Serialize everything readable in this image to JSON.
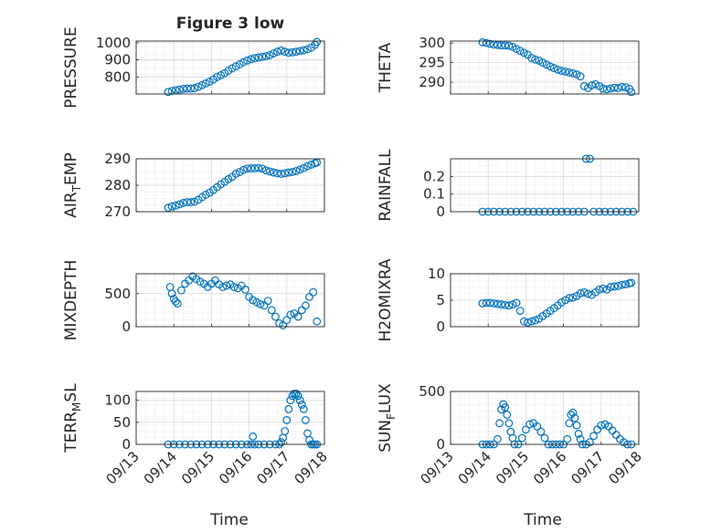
{
  "figure": {
    "title": "Figure 3 low",
    "x_axis_label": "Time",
    "x_tick_labels": [
      "09/13",
      "09/14",
      "09/15",
      "09/16",
      "09/17",
      "09/18"
    ],
    "marker": "circle",
    "marker_color": "#0072bd",
    "grid": "major and minor, dotted"
  },
  "chart_data": [
    {
      "type": "scatter",
      "ylabel": "PRESSURE",
      "ylim": [
        700,
        1010
      ],
      "y_ticks": [
        800,
        900,
        1000
      ],
      "show_x_tick_labels": false,
      "series": [
        {
          "x": [
            0.85,
            0.95,
            1.05,
            1.15,
            1.25,
            1.35,
            1.45,
            1.55,
            1.65,
            1.75,
            1.85,
            1.95,
            2.05,
            2.15,
            2.25,
            2.35,
            2.45,
            2.55,
            2.65,
            2.75,
            2.85,
            2.95,
            3.05,
            3.15,
            3.25,
            3.35,
            3.45,
            3.55,
            3.65,
            3.75,
            3.85,
            3.95,
            4.05,
            4.15,
            4.25,
            4.35,
            4.45,
            4.55,
            4.65,
            4.75,
            4.8
          ],
          "y": [
            712,
            718,
            722,
            726,
            730,
            732,
            732,
            734,
            742,
            752,
            762,
            772,
            785,
            800,
            810,
            822,
            836,
            850,
            862,
            874,
            886,
            896,
            904,
            910,
            914,
            918,
            922,
            928,
            938,
            948,
            955,
            948,
            942,
            944,
            948,
            952,
            956,
            962,
            972,
            988,
            1005
          ]
        }
      ]
    },
    {
      "type": "scatter",
      "ylabel": "THETA",
      "ylim": [
        287,
        300.5
      ],
      "y_ticks": [
        290,
        295,
        300
      ],
      "show_x_tick_labels": false,
      "series": [
        {
          "x": [
            0.85,
            0.95,
            1.05,
            1.15,
            1.25,
            1.35,
            1.45,
            1.55,
            1.65,
            1.75,
            1.85,
            1.95,
            2.05,
            2.15,
            2.25,
            2.35,
            2.45,
            2.55,
            2.65,
            2.75,
            2.85,
            2.95,
            3.05,
            3.15,
            3.25,
            3.35,
            3.45,
            3.55,
            3.65,
            3.75,
            3.85,
            3.95,
            4.05,
            4.15,
            4.25,
            4.35,
            4.45,
            4.55,
            4.65,
            4.75,
            4.8
          ],
          "y": [
            300.2,
            300.0,
            299.8,
            299.6,
            299.5,
            299.4,
            299.4,
            299.3,
            299.0,
            298.5,
            298.0,
            297.5,
            297.0,
            296.2,
            295.8,
            295.5,
            295.0,
            294.5,
            294.0,
            293.6,
            293.2,
            292.9,
            292.7,
            292.5,
            292.3,
            292.0,
            291.5,
            289.0,
            288.5,
            289.2,
            289.5,
            289.0,
            288.4,
            288.2,
            288.4,
            288.6,
            288.5,
            288.8,
            288.7,
            288.3,
            287.5
          ]
        }
      ]
    },
    {
      "type": "scatter",
      "ylabel": "AIR",
      "ylabel_sub": "T",
      "ylabel_rest": "EMP",
      "ylim": [
        270,
        290
      ],
      "y_ticks": [
        270,
        280,
        290
      ],
      "show_x_tick_labels": false,
      "series": [
        {
          "x": [
            0.85,
            0.95,
            1.05,
            1.15,
            1.25,
            1.35,
            1.45,
            1.55,
            1.65,
            1.75,
            1.85,
            1.95,
            2.05,
            2.15,
            2.25,
            2.35,
            2.45,
            2.55,
            2.65,
            2.75,
            2.85,
            2.95,
            3.05,
            3.15,
            3.25,
            3.35,
            3.45,
            3.55,
            3.65,
            3.75,
            3.85,
            3.95,
            4.05,
            4.15,
            4.25,
            4.35,
            4.45,
            4.55,
            4.65,
            4.75,
            4.8
          ],
          "y": [
            271.5,
            272.0,
            272.3,
            272.8,
            273.3,
            273.6,
            273.6,
            273.8,
            274.5,
            275.5,
            276.4,
            277.2,
            278.2,
            279.3,
            280.4,
            281.3,
            282.3,
            283.2,
            284.3,
            285.0,
            285.8,
            286.3,
            286.4,
            286.4,
            286.5,
            286.3,
            285.6,
            285.2,
            284.8,
            284.5,
            284.3,
            284.5,
            284.8,
            285.0,
            285.4,
            285.9,
            286.5,
            287.2,
            287.8,
            288.3,
            288.6
          ]
        }
      ]
    },
    {
      "type": "scatter",
      "ylabel": "RAINFALL",
      "ylim": [
        0,
        0.3
      ],
      "y_ticks": [
        0,
        0.1,
        0.2
      ],
      "show_x_tick_labels": false,
      "series": [
        {
          "x": [
            0.85,
            1.0,
            1.15,
            1.3,
            1.45,
            1.6,
            1.75,
            1.9,
            2.05,
            2.2,
            2.35,
            2.5,
            2.65,
            2.8,
            2.95,
            3.1,
            3.25,
            3.4,
            3.55,
            3.6,
            3.7,
            3.8,
            3.95,
            4.1,
            4.25,
            4.4,
            4.55,
            4.7,
            4.85
          ],
          "y": [
            0,
            0,
            0,
            0,
            0,
            0,
            0,
            0,
            0,
            0,
            0,
            0,
            0,
            0,
            0,
            0,
            0,
            0,
            0,
            0.3,
            0.3,
            0,
            0,
            0,
            0,
            0,
            0,
            0,
            0
          ]
        }
      ]
    },
    {
      "type": "scatter",
      "ylabel": "MIXDEPTH",
      "ylim": [
        0,
        800
      ],
      "y_ticks": [
        0,
        500
      ],
      "show_x_tick_labels": false,
      "series": [
        {
          "x": [
            0.9,
            0.95,
            1.0,
            1.05,
            1.1,
            1.2,
            1.3,
            1.4,
            1.5,
            1.6,
            1.7,
            1.8,
            1.9,
            2.0,
            2.1,
            2.2,
            2.3,
            2.4,
            2.5,
            2.6,
            2.7,
            2.8,
            2.9,
            3.0,
            3.1,
            3.2,
            3.3,
            3.4,
            3.5,
            3.6,
            3.7,
            3.8,
            3.9,
            4.0,
            4.1,
            4.2,
            4.3,
            4.4,
            4.5,
            4.6,
            4.7,
            4.8
          ],
          "y": [
            600,
            500,
            420,
            380,
            350,
            550,
            650,
            700,
            760,
            720,
            680,
            650,
            600,
            650,
            700,
            640,
            600,
            620,
            640,
            600,
            580,
            620,
            560,
            450,
            400,
            370,
            340,
            320,
            390,
            250,
            150,
            50,
            20,
            100,
            180,
            200,
            150,
            250,
            320,
            450,
            520,
            80
          ]
        }
      ]
    },
    {
      "type": "scatter",
      "ylabel": "H2OMIXRA",
      "ylim": [
        0,
        10
      ],
      "y_ticks": [
        0,
        5,
        10
      ],
      "show_x_tick_labels": false,
      "series": [
        {
          "x": [
            0.85,
            0.95,
            1.05,
            1.15,
            1.25,
            1.35,
            1.45,
            1.55,
            1.65,
            1.75,
            1.85,
            1.95,
            2.05,
            2.15,
            2.25,
            2.35,
            2.45,
            2.55,
            2.65,
            2.75,
            2.85,
            2.95,
            3.05,
            3.15,
            3.25,
            3.35,
            3.45,
            3.55,
            3.65,
            3.75,
            3.85,
            3.95,
            4.05,
            4.15,
            4.25,
            4.35,
            4.45,
            4.55,
            4.65,
            4.75,
            4.8
          ],
          "y": [
            4.4,
            4.5,
            4.5,
            4.4,
            4.3,
            4.2,
            4.1,
            4.0,
            4.2,
            4.5,
            3.0,
            1.0,
            0.8,
            1.0,
            1.2,
            1.5,
            2.0,
            2.5,
            3.0,
            3.5,
            4.0,
            4.6,
            5.0,
            5.4,
            5.5,
            5.8,
            6.3,
            6.5,
            6.2,
            6.0,
            6.5,
            7.0,
            7.2,
            7.0,
            7.5,
            7.6,
            7.7,
            7.9,
            8.0,
            8.2,
            8.3
          ]
        }
      ]
    },
    {
      "type": "scatter",
      "ylabel": "TERR",
      "ylabel_sub": "M",
      "ylabel_rest": "SL",
      "ylim": [
        0,
        120
      ],
      "y_ticks": [
        0,
        50,
        100
      ],
      "show_x_tick_labels": true,
      "series": [
        {
          "x": [
            0.85,
            1.0,
            1.15,
            1.3,
            1.45,
            1.6,
            1.75,
            1.9,
            2.05,
            2.2,
            2.35,
            2.5,
            2.65,
            2.8,
            2.95,
            3.05,
            3.1,
            3.15,
            3.25,
            3.4,
            3.55,
            3.7,
            3.8,
            3.85,
            3.9,
            3.95,
            4.0,
            4.05,
            4.1,
            4.15,
            4.2,
            4.25,
            4.3,
            4.35,
            4.4,
            4.45,
            4.5,
            4.55,
            4.6,
            4.65,
            4.7,
            4.75,
            4.8
          ],
          "y": [
            0,
            0,
            0,
            0,
            0,
            0,
            0,
            0,
            0,
            0,
            0,
            0,
            0,
            0,
            0,
            0,
            18,
            0,
            0,
            0,
            0,
            0,
            0,
            5,
            15,
            30,
            55,
            80,
            100,
            110,
            115,
            115,
            110,
            100,
            90,
            80,
            55,
            25,
            10,
            0,
            0,
            0,
            0
          ]
        }
      ]
    },
    {
      "type": "scatter",
      "ylabel": "SUN",
      "ylabel_sub": "F",
      "ylabel_rest": "LUX",
      "ylim": [
        0,
        500
      ],
      "y_ticks": [
        0,
        500
      ],
      "show_x_tick_labels": true,
      "series": [
        {
          "x": [
            0.85,
            0.95,
            1.05,
            1.15,
            1.25,
            1.3,
            1.35,
            1.4,
            1.45,
            1.5,
            1.55,
            1.6,
            1.65,
            1.7,
            1.8,
            1.9,
            2.0,
            2.1,
            2.2,
            2.3,
            2.4,
            2.5,
            2.6,
            2.7,
            2.8,
            2.9,
            3.0,
            3.1,
            3.15,
            3.2,
            3.25,
            3.3,
            3.35,
            3.4,
            3.45,
            3.5,
            3.6,
            3.7,
            3.8,
            3.9,
            4.0,
            4.1,
            4.2,
            4.3,
            4.4,
            4.5,
            4.6,
            4.7,
            4.8
          ],
          "y": [
            0,
            0,
            0,
            0,
            50,
            200,
            330,
            380,
            350,
            280,
            200,
            120,
            60,
            0,
            0,
            60,
            140,
            190,
            200,
            170,
            120,
            60,
            0,
            0,
            0,
            0,
            0,
            50,
            200,
            280,
            300,
            250,
            180,
            100,
            50,
            0,
            0,
            20,
            80,
            140,
            180,
            190,
            170,
            130,
            90,
            50,
            20,
            0,
            0
          ]
        }
      ]
    }
  ]
}
